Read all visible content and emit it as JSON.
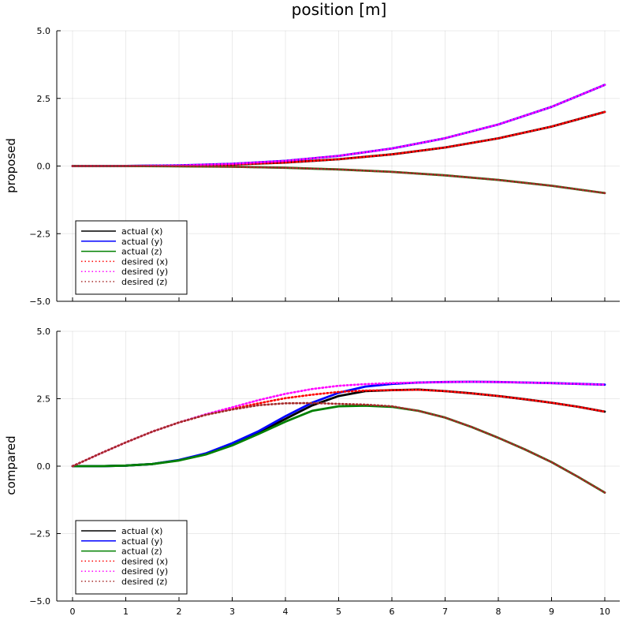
{
  "figure": {
    "title": "position [m]"
  },
  "chart_data": [
    {
      "type": "line",
      "title": "position [m]",
      "ylabel": "proposed",
      "xlabel": "",
      "xlim": [
        0,
        10
      ],
      "ylim": [
        -5,
        5
      ],
      "xticks": [
        0,
        1,
        2,
        3,
        4,
        5,
        6,
        7,
        8,
        9,
        10
      ],
      "xtick_labels_shown": false,
      "yticks": [
        -5,
        -2.5,
        0,
        2.5,
        5
      ],
      "ytick_labels": [
        "−5.0",
        "−2.5",
        "0.0",
        "2.5",
        "5.0"
      ],
      "grid": true,
      "legend": {
        "position": "bottom-left",
        "entries": [
          "actual (x)",
          "actual (y)",
          "actual (z)",
          "desired (x)",
          "desired (y)",
          "desired (z)"
        ]
      },
      "x": [
        0,
        1,
        2,
        3,
        4,
        5,
        6,
        7,
        8,
        9,
        10
      ],
      "series": [
        {
          "name": "actual (x)",
          "color": "#000000",
          "style": "solid",
          "values": [
            0,
            0.002,
            0.016,
            0.054,
            0.128,
            0.25,
            0.432,
            0.686,
            1.024,
            1.458,
            2.0
          ]
        },
        {
          "name": "actual (y)",
          "color": "#0000ff",
          "style": "solid",
          "values": [
            0,
            0.003,
            0.024,
            0.081,
            0.192,
            0.375,
            0.648,
            1.029,
            1.536,
            2.187,
            3.0
          ]
        },
        {
          "name": "actual (z)",
          "color": "#008000",
          "style": "solid",
          "values": [
            0,
            -0.001,
            -0.008,
            -0.027,
            -0.064,
            -0.125,
            -0.216,
            -0.343,
            -0.512,
            -0.729,
            -1.0
          ]
        },
        {
          "name": "desired (x)",
          "color": "#ff0000",
          "style": "dotted",
          "values": [
            0,
            0.002,
            0.016,
            0.054,
            0.128,
            0.25,
            0.432,
            0.686,
            1.024,
            1.458,
            2.0
          ]
        },
        {
          "name": "desired (y)",
          "color": "#ff00ff",
          "style": "dotted",
          "values": [
            0,
            0.003,
            0.024,
            0.081,
            0.192,
            0.375,
            0.648,
            1.029,
            1.536,
            2.187,
            3.0
          ]
        },
        {
          "name": "desired (z)",
          "color": "#a52a2a",
          "style": "dotted",
          "values": [
            0,
            -0.001,
            -0.008,
            -0.027,
            -0.064,
            -0.125,
            -0.216,
            -0.343,
            -0.512,
            -0.729,
            -1.0
          ]
        }
      ]
    },
    {
      "type": "line",
      "title": "",
      "ylabel": "compared",
      "xlabel": "",
      "xlim": [
        0,
        10
      ],
      "ylim": [
        -5,
        5
      ],
      "xticks": [
        0,
        1,
        2,
        3,
        4,
        5,
        6,
        7,
        8,
        9,
        10
      ],
      "xtick_labels": [
        "0",
        "1",
        "2",
        "3",
        "4",
        "5",
        "6",
        "7",
        "8",
        "9",
        "10"
      ],
      "xtick_labels_shown": true,
      "yticks": [
        -5,
        -2.5,
        0,
        2.5,
        5
      ],
      "ytick_labels": [
        "−5.0",
        "−2.5",
        "0.0",
        "2.5",
        "5.0"
      ],
      "grid": true,
      "legend": {
        "position": "bottom-left",
        "entries": [
          "actual (x)",
          "actual (y)",
          "actual (z)",
          "desired (x)",
          "desired (y)",
          "desired (z)"
        ]
      },
      "x": [
        0,
        0.5,
        1,
        1.5,
        2,
        2.5,
        3,
        3.5,
        4,
        4.5,
        5,
        5.5,
        6,
        6.5,
        7,
        7.5,
        8,
        8.5,
        9,
        9.5,
        10
      ],
      "series": [
        {
          "name": "actual (x)",
          "color": "#000000",
          "style": "solid",
          "values": [
            0,
            0.0,
            0.02,
            0.08,
            0.22,
            0.45,
            0.8,
            1.25,
            1.75,
            2.25,
            2.6,
            2.78,
            2.82,
            2.84,
            2.78,
            2.7,
            2.6,
            2.48,
            2.35,
            2.2,
            2.02
          ]
        },
        {
          "name": "actual (y)",
          "color": "#0000ff",
          "style": "solid",
          "values": [
            0,
            0.0,
            0.02,
            0.08,
            0.23,
            0.47,
            0.85,
            1.3,
            1.85,
            2.35,
            2.72,
            2.95,
            3.05,
            3.1,
            3.12,
            3.13,
            3.12,
            3.1,
            3.08,
            3.05,
            3.02
          ]
        },
        {
          "name": "actual (z)",
          "color": "#008000",
          "style": "solid",
          "values": [
            0,
            0.0,
            0.02,
            0.08,
            0.21,
            0.43,
            0.77,
            1.2,
            1.65,
            2.05,
            2.22,
            2.24,
            2.2,
            2.05,
            1.8,
            1.45,
            1.05,
            0.62,
            0.15,
            -0.4,
            -0.98
          ]
        },
        {
          "name": "desired (x)",
          "color": "#ff0000",
          "style": "dotted",
          "values": [
            0,
            0.45,
            0.88,
            1.28,
            1.62,
            1.9,
            2.12,
            2.33,
            2.52,
            2.65,
            2.75,
            2.8,
            2.82,
            2.83,
            2.78,
            2.7,
            2.6,
            2.48,
            2.35,
            2.2,
            2.02
          ]
        },
        {
          "name": "desired (y)",
          "color": "#ff00ff",
          "style": "dotted",
          "values": [
            0,
            0.45,
            0.88,
            1.28,
            1.62,
            1.92,
            2.18,
            2.45,
            2.68,
            2.86,
            2.98,
            3.04,
            3.08,
            3.1,
            3.12,
            3.13,
            3.12,
            3.1,
            3.08,
            3.05,
            3.02
          ]
        },
        {
          "name": "desired (z)",
          "color": "#a52a2a",
          "style": "dotted",
          "values": [
            0,
            0.45,
            0.88,
            1.28,
            1.62,
            1.9,
            2.1,
            2.26,
            2.33,
            2.34,
            2.31,
            2.28,
            2.22,
            2.05,
            1.8,
            1.45,
            1.05,
            0.62,
            0.15,
            -0.4,
            -0.98
          ]
        }
      ]
    }
  ]
}
